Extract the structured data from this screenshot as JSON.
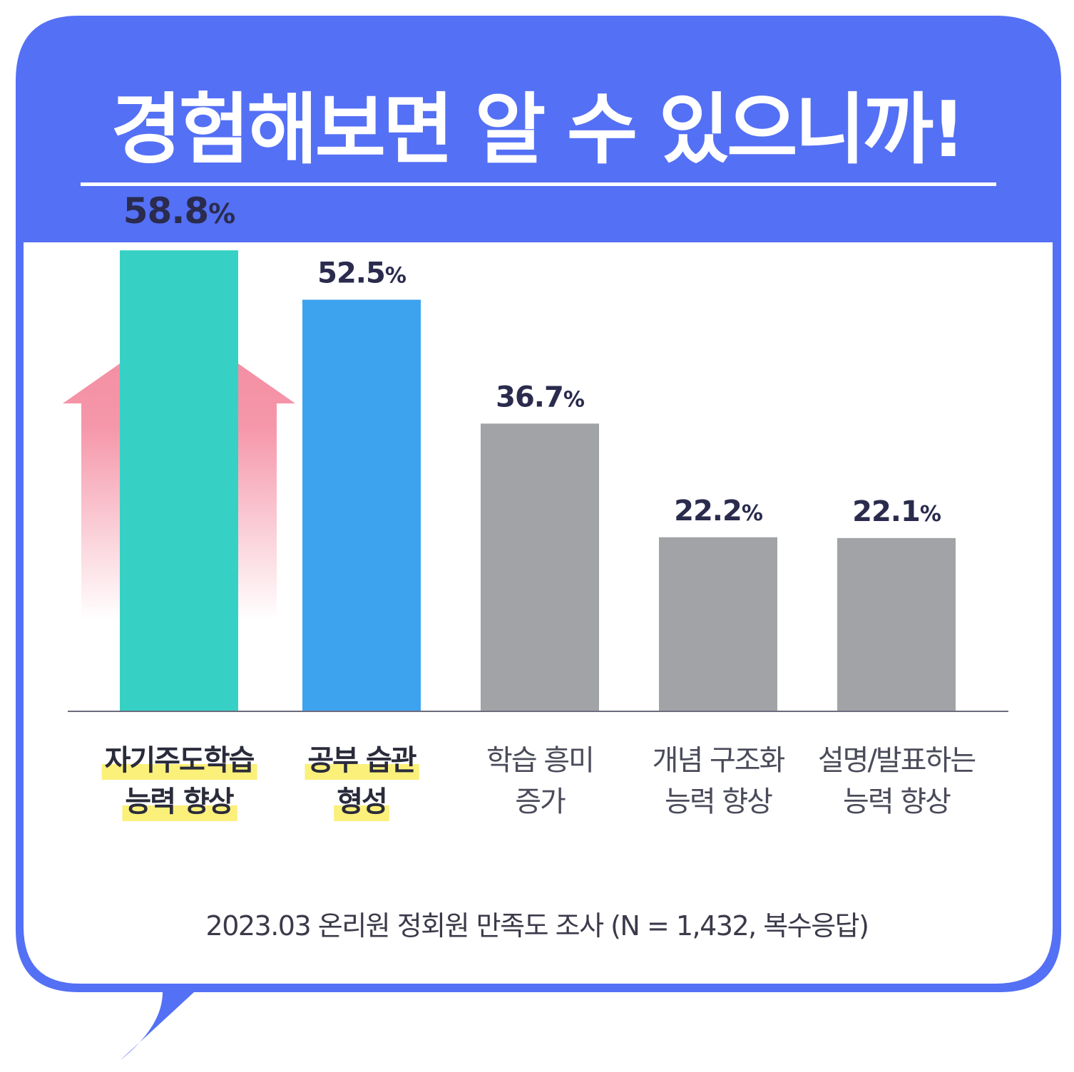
{
  "title": "경험해보면 알 수 있으니까!",
  "source_note": "2023.03 온리원 정회원 만족도 조사 (N = 1,432, 복수응답)",
  "colors": {
    "frame": "#5470F5",
    "panel": "#ffffff",
    "highlight_bar": "#36D1C4",
    "second_bar": "#3DA3EE",
    "other_bar": "#A2A3A6",
    "arrow": "#F48BA0",
    "label_highlight": "#FBF07A",
    "value_text": "#2A2B4D",
    "axis": "#6B6C7E"
  },
  "chart_data": {
    "type": "bar",
    "title": "",
    "xlabel": "",
    "ylabel": "",
    "ylim": [
      0,
      66
    ],
    "unit": "%",
    "categories": [
      [
        "자기주도학습",
        "능력 향상"
      ],
      [
        "공부 습관",
        "형성"
      ],
      [
        "학습 흥미",
        "증가"
      ],
      [
        "개념 구조화",
        "능력 향상"
      ],
      [
        "설명/발표하는",
        "능력 향상"
      ]
    ],
    "values": [
      58.8,
      52.5,
      36.7,
      22.2,
      22.1
    ],
    "value_labels": [
      "58.8",
      "52.5",
      "36.7",
      "22.2",
      "22.1"
    ],
    "bar_colors": [
      "#36D1C4",
      "#3DA3EE",
      "#A2A3A6",
      "#A2A3A6",
      "#A2A3A6"
    ],
    "highlighted_labels": [
      true,
      true,
      false,
      false,
      false
    ],
    "emphasized_index": 0
  }
}
